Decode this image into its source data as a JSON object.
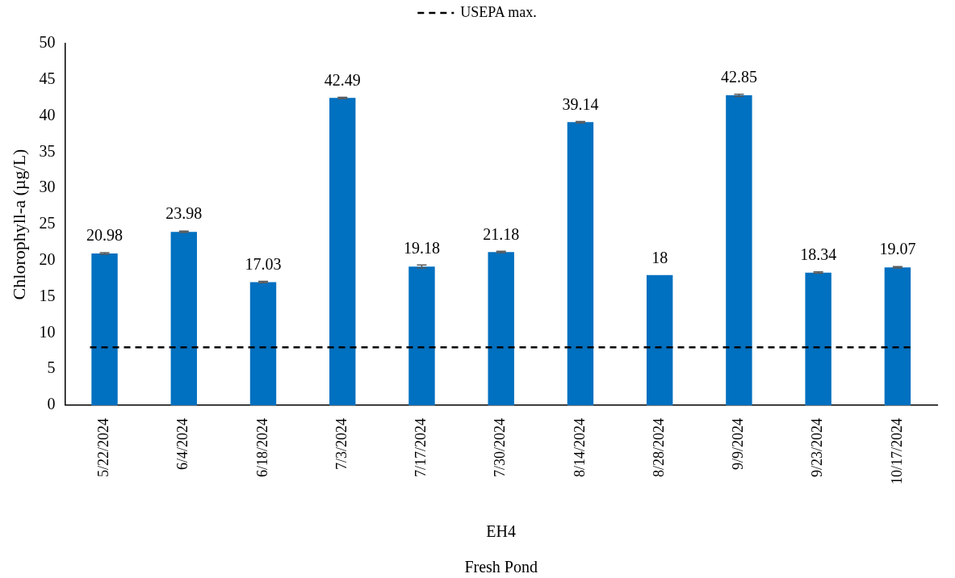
{
  "chart_data": {
    "type": "bar",
    "categories": [
      "5/22/2024",
      "6/4/2024",
      "6/18/2024",
      "7/3/2024",
      "7/17/2024",
      "7/30/2024",
      "8/14/2024",
      "8/28/2024",
      "9/9/2024",
      "9/23/2024",
      "10/17/2024"
    ],
    "values": [
      20.98,
      23.98,
      17.03,
      42.49,
      19.18,
      21.18,
      39.14,
      18,
      42.85,
      18.34,
      19.07
    ],
    "errors": [
      0.1,
      0.1,
      0.1,
      0.1,
      0.2,
      0.1,
      0.1,
      null,
      0.15,
      0.1,
      0.1
    ],
    "color": "#0070c0",
    "ylabel": "Chlorophyll-a (µg/L)",
    "xlabel": "EH4",
    "annotations": [
      "Fresh Pond"
    ],
    "ylim": [
      0,
      50
    ],
    "yticks": [
      0,
      5,
      10,
      15,
      20,
      25,
      30,
      35,
      40,
      45,
      50
    ],
    "ref_lines": [
      {
        "axis": "y",
        "value": 8,
        "label": "USEPA max.",
        "color": "#000000",
        "line_style": "dashed"
      }
    ],
    "legend": "top",
    "data_labels": true,
    "grid": false
  }
}
